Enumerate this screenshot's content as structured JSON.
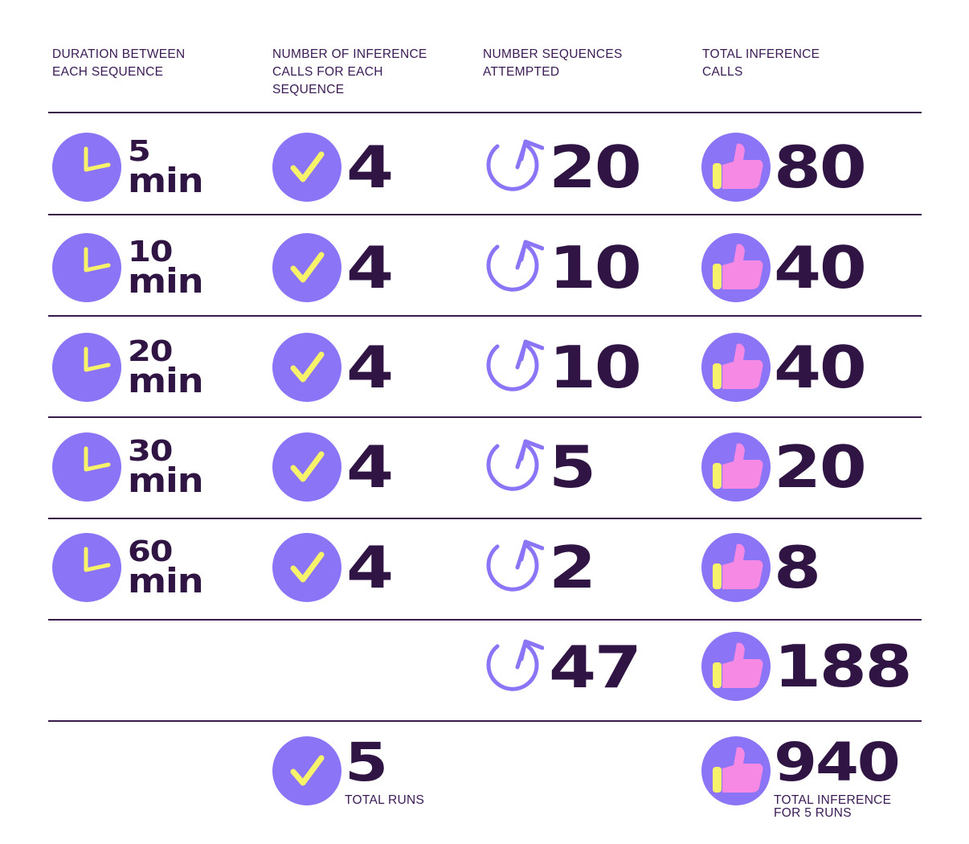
{
  "headers": {
    "duration": "DURATION BETWEEN\nEACH SEQUENCE",
    "inference_calls": "NUMBER OF INFERENCE\nCALLS FOR EACH\nSEQUENCE",
    "sequences": "NUMBER SEQUENCES\nATTEMPTED",
    "total": "TOTAL INFERENCE\nCALLS"
  },
  "rows": [
    {
      "duration": "5",
      "unit": "min",
      "calls": "4",
      "sequences": "20",
      "total": "80"
    },
    {
      "duration": "10",
      "unit": "min",
      "calls": "4",
      "sequences": "10",
      "total": "40"
    },
    {
      "duration": "20",
      "unit": "min",
      "calls": "4",
      "sequences": "10",
      "total": "40"
    },
    {
      "duration": "30",
      "unit": "min",
      "calls": "4",
      "sequences": "5",
      "total": "20"
    },
    {
      "duration": "60",
      "unit": "min",
      "calls": "4",
      "sequences": "2",
      "total": "8"
    }
  ],
  "sum_row": {
    "sequences": "47",
    "total": "188"
  },
  "final_row": {
    "runs": "5",
    "runs_label": "TOTAL RUNS",
    "total": "940",
    "total_label": "TOTAL INFERENCE\nFOR 5 RUNS"
  },
  "icons": [
    "clock-icon",
    "checkmark-icon",
    "retry-arrow-icon",
    "thumbs-up-icon"
  ],
  "colors": {
    "icon_circle": "#8c74f6",
    "check_yellow": "#f6f26a",
    "thumb_pink": "#f589e3",
    "text_dark": "#301544",
    "rule": "#3a1a48"
  }
}
